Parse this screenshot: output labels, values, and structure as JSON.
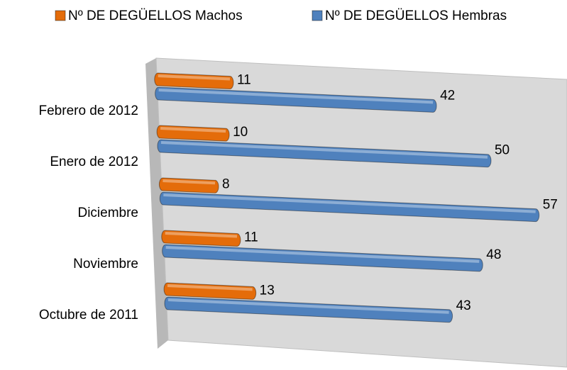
{
  "chart_data": {
    "type": "bar3d_horizontal",
    "categories": [
      "Octubre de 2011",
      "Noviembre",
      "Diciembre",
      "Enero de 2012",
      "Febrero de 2012"
    ],
    "series": [
      {
        "name": "Nº DE DEGÜELLOS Machos",
        "color": "#e46c0a",
        "values": [
          13,
          11,
          8,
          10,
          11
        ]
      },
      {
        "name": "Nº DE DEGÜELLOS Hembras",
        "color": "#4f81bd",
        "values": [
          43,
          48,
          57,
          50,
          42
        ]
      }
    ],
    "xlim": [
      0,
      60
    ]
  }
}
